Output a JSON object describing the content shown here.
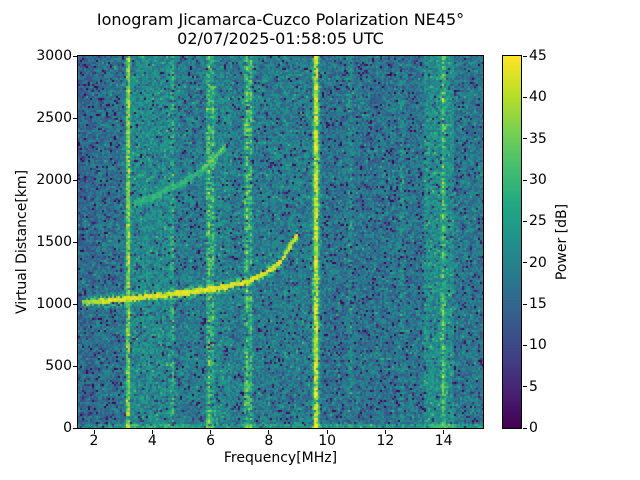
{
  "chart_data": {
    "type": "heatmap",
    "title": "Ionogram Jicamarca-Cuzco Polarization NE45°",
    "subtitle": "02/07/2025-01:58:05 UTC",
    "xlabel": "Frequency[MHz]",
    "ylabel": "Virtual Distance[km]",
    "xlim": [
      1.45,
      15.35
    ],
    "ylim": [
      0,
      3000
    ],
    "xticks": [
      2,
      4,
      6,
      8,
      10,
      12,
      14
    ],
    "yticks": [
      0,
      500,
      1000,
      1500,
      2000,
      2500,
      3000
    ],
    "colorbar": {
      "label": "Power [dB]",
      "min": 0,
      "max": 45,
      "ticks": [
        0,
        5,
        10,
        15,
        20,
        25,
        30,
        35,
        40,
        45
      ],
      "colormap": "viridis"
    },
    "background_regions_mhz": [
      {
        "from": 1.45,
        "to": 2.05,
        "level_db": 15.5
      },
      {
        "from": 2.05,
        "to": 3.1,
        "level_db": 17.0
      },
      {
        "from": 3.1,
        "to": 3.3,
        "level_db": 18.0
      },
      {
        "from": 3.3,
        "to": 4.6,
        "level_db": 21.0
      },
      {
        "from": 4.6,
        "to": 5.85,
        "level_db": 18.5
      },
      {
        "from": 5.85,
        "to": 6.7,
        "level_db": 20.0
      },
      {
        "from": 6.7,
        "to": 9.4,
        "level_db": 18.5
      },
      {
        "from": 9.4,
        "to": 13.3,
        "level_db": 17.0
      },
      {
        "from": 13.3,
        "to": 14.35,
        "level_db": 22.0
      },
      {
        "from": 14.35,
        "to": 15.35,
        "level_db": 17.5
      }
    ],
    "rfi_stripes": [
      {
        "freq_mhz": 3.17,
        "boost_db": 24,
        "width_mhz": 0.07,
        "dashed": false
      },
      {
        "freq_mhz": 4.68,
        "boost_db": 12,
        "width_mhz": 0.07,
        "dashed": true
      },
      {
        "freq_mhz": 5.92,
        "boost_db": 15,
        "width_mhz": 0.07,
        "dashed": true
      },
      {
        "freq_mhz": 6.06,
        "boost_db": 11,
        "width_mhz": 0.07,
        "dashed": true
      },
      {
        "freq_mhz": 7.22,
        "boost_db": 17,
        "width_mhz": 0.07,
        "dashed": true
      },
      {
        "freq_mhz": 7.36,
        "boost_db": 13,
        "width_mhz": 0.07,
        "dashed": true
      },
      {
        "freq_mhz": 9.6,
        "boost_db": 28,
        "width_mhz": 0.1,
        "dashed": false
      },
      {
        "freq_mhz": 10.78,
        "boost_db": 6,
        "width_mhz": 0.07,
        "dashed": true
      },
      {
        "freq_mhz": 12.53,
        "boost_db": 5,
        "width_mhz": 0.07,
        "dashed": true
      },
      {
        "freq_mhz": 13.95,
        "boost_db": 13,
        "width_mhz": 0.07,
        "dashed": true
      }
    ],
    "echo_traces": [
      {
        "name": "f-region-first-hop",
        "points_mhz_km": [
          [
            1.6,
            1010
          ],
          [
            2.5,
            1025
          ],
          [
            3.5,
            1052
          ],
          [
            4.5,
            1072
          ],
          [
            5.0,
            1089
          ],
          [
            6.3,
            1129
          ],
          [
            7.25,
            1177
          ],
          [
            7.9,
            1250
          ],
          [
            8.4,
            1340
          ],
          [
            8.65,
            1440
          ],
          [
            8.95,
            1545
          ]
        ],
        "peak_db": 45,
        "core_km": 20,
        "fuzz_km": 45,
        "jitter_km": 14
      },
      {
        "name": "f-region-second-hop",
        "points_mhz_km": [
          [
            3.35,
            1800
          ],
          [
            4.2,
            1880
          ],
          [
            5.0,
            1975
          ],
          [
            5.6,
            2060
          ],
          [
            6.1,
            2160
          ],
          [
            6.5,
            2265
          ]
        ],
        "peak_db": 31,
        "core_km": 28,
        "fuzz_km": 90,
        "jitter_km": 30
      },
      {
        "name": "second-hop-cusp",
        "points_mhz_km": [
          [
            5.7,
            2090
          ],
          [
            6.1,
            2170
          ],
          [
            6.45,
            2270
          ]
        ],
        "peak_db": 38,
        "core_km": 14,
        "fuzz_km": 25,
        "jitter_km": 10
      }
    ],
    "noise_texture": {
      "uniform_spread_db": 5.5,
      "dark_speckle_prob": 0.1,
      "dark_speckle_depth_db": 14,
      "bright_speckle_prob": 0.12,
      "bright_speckle_gain_db": 8,
      "bottom_artifact_km": 35,
      "bottom_artifact_boost_db": 6
    }
  },
  "colors": {
    "figure_background": "#ffffff",
    "axis_color": "#000000",
    "colormap_stops": [
      {
        "t": 0.0,
        "color": "#440154"
      },
      {
        "t": 0.1,
        "color": "#482475"
      },
      {
        "t": 0.2,
        "color": "#414487"
      },
      {
        "t": 0.3,
        "color": "#355f8d"
      },
      {
        "t": 0.4,
        "color": "#2a788e"
      },
      {
        "t": 0.5,
        "color": "#21918c"
      },
      {
        "t": 0.6,
        "color": "#22a884"
      },
      {
        "t": 0.7,
        "color": "#44bf70"
      },
      {
        "t": 0.8,
        "color": "#7ad151"
      },
      {
        "t": 0.9,
        "color": "#bddf26"
      },
      {
        "t": 1.0,
        "color": "#fde725"
      }
    ]
  }
}
